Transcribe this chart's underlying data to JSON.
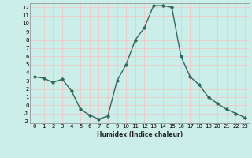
{
  "x": [
    0,
    1,
    2,
    3,
    4,
    5,
    6,
    7,
    8,
    9,
    10,
    11,
    12,
    13,
    14,
    15,
    16,
    17,
    18,
    19,
    20,
    21,
    22,
    23
  ],
  "y": [
    3.5,
    3.3,
    2.8,
    3.2,
    1.8,
    -0.5,
    -1.2,
    -1.7,
    -1.3,
    3.0,
    5.0,
    8.0,
    9.5,
    12.2,
    12.2,
    12.0,
    6.0,
    3.5,
    2.5,
    1.0,
    0.2,
    -0.5,
    -1.0,
    -1.5
  ],
  "xlim": [
    -0.5,
    23.5
  ],
  "ylim": [
    -2.2,
    12.5
  ],
  "yticks": [
    -2,
    -1,
    0,
    1,
    2,
    3,
    4,
    5,
    6,
    7,
    8,
    9,
    10,
    11,
    12
  ],
  "xticks": [
    0,
    1,
    2,
    3,
    4,
    5,
    6,
    7,
    8,
    9,
    10,
    11,
    12,
    13,
    14,
    15,
    16,
    17,
    18,
    19,
    20,
    21,
    22,
    23
  ],
  "xlabel": "Humidex (Indice chaleur)",
  "line_color": "#2e6b5e",
  "marker": "D",
  "marker_size": 1.8,
  "line_width": 1.0,
  "bg_color": "#cceee8",
  "grid_color": "#f0c8c8",
  "grid_alpha": 1.0,
  "tick_fontsize": 5.0,
  "xlabel_fontsize": 5.5
}
